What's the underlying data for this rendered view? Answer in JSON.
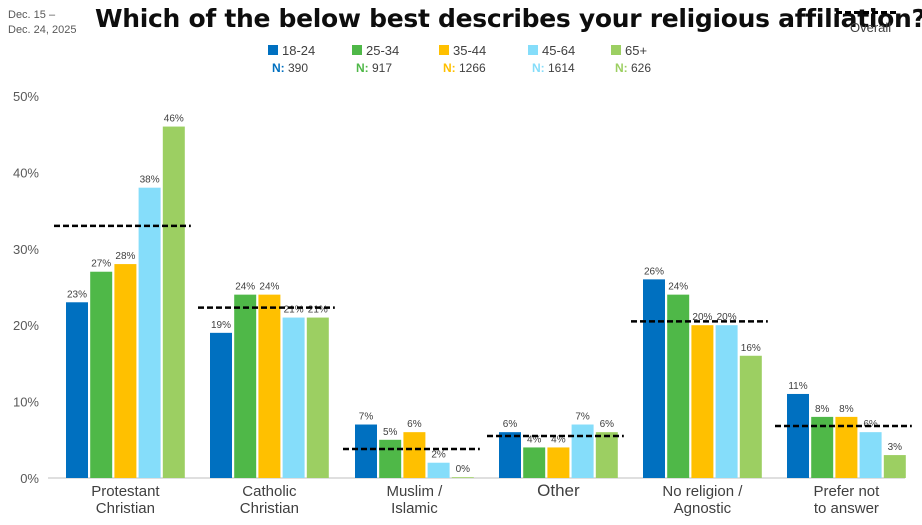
{
  "header": {
    "date_line1": "Dec. 15 –",
    "date_line2": "Dec. 24, 2025",
    "title": "Which of the below best describes your religious affiliation?",
    "overall_label": "Overall"
  },
  "chart_data": {
    "type": "bar",
    "title": "Which of the below best describes your religious affiliation?",
    "categories": [
      [
        "Protestant",
        "Christian"
      ],
      [
        "Catholic",
        "Christian"
      ],
      [
        "Muslim /",
        "Islamic"
      ],
      [
        "Other"
      ],
      [
        "No religion /",
        "Agnostic"
      ],
      [
        "Prefer not",
        "to answer"
      ]
    ],
    "series": [
      {
        "name": "18-24",
        "n_label": "N:",
        "n_value": "390",
        "color": "#0070c0",
        "values": [
          23,
          19,
          7,
          6,
          26,
          11
        ],
        "labels": [
          "23%",
          "19%",
          "7%",
          "6%",
          "26%",
          "11%"
        ]
      },
      {
        "name": "25-34",
        "n_label": "N:",
        "n_value": "917",
        "color": "#4fb848",
        "values": [
          27,
          24,
          5,
          4,
          24,
          8
        ],
        "labels": [
          "27%",
          "24%",
          "5%",
          "4%",
          "24%",
          "8%"
        ]
      },
      {
        "name": "35-44",
        "n_label": "N:",
        "n_value": "1266",
        "color": "#ffc000",
        "values": [
          28,
          24,
          6,
          4,
          20,
          8
        ],
        "labels": [
          "28%",
          "24%",
          "6%",
          "4%",
          "20%",
          "8%"
        ]
      },
      {
        "name": "45-64",
        "n_label": "N:",
        "n_value": "1614",
        "color": "#85ddfa",
        "values": [
          38,
          21,
          2,
          7,
          20,
          6
        ],
        "labels": [
          "38%",
          "21%",
          "2%",
          "7%",
          "20%",
          "6%"
        ]
      },
      {
        "name": "65+",
        "n_label": "N:",
        "n_value": "626",
        "color": "#9ccf62",
        "values": [
          46,
          21,
          0,
          6,
          16,
          3
        ],
        "labels": [
          "46%",
          "21%",
          "0%",
          "6%",
          "16%",
          "3%"
        ]
      }
    ],
    "overall": [
      33,
      22.3,
      3.8,
      5.5,
      20.5,
      6.8
    ],
    "ylim": [
      0,
      50
    ],
    "yticks": [
      "0%",
      "10%",
      "20%",
      "30%",
      "40%",
      "50%"
    ],
    "grid": false,
    "legend": "top-center"
  }
}
